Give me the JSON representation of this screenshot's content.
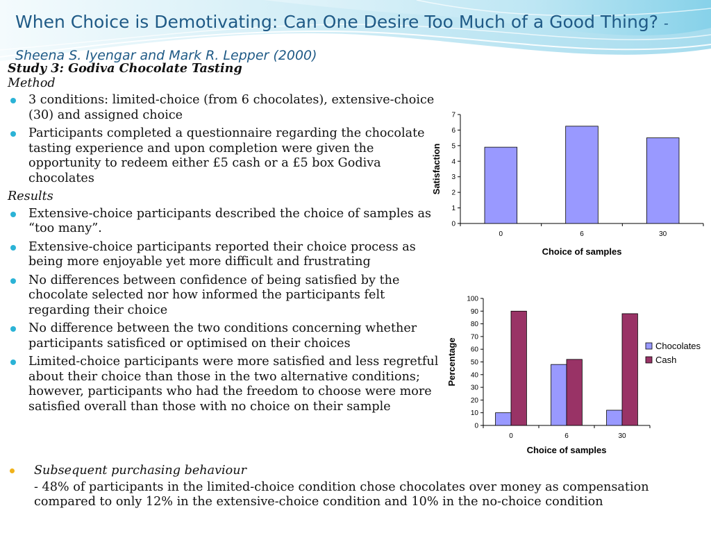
{
  "title": {
    "main": "When Choice is Demotivating: Can One Desire Too Much of a Good Thing?",
    "author": "-Sheena S. Iyengar and Mark R. Lepper (2000)"
  },
  "study_heading": "Study 3: Godiva Chocolate Tasting",
  "method": {
    "heading": "Method",
    "bullets": [
      "3 conditions: limited-choice (from 6 chocolates), extensive-choice (30) and assigned choice",
      "Participants completed a questionnaire regarding the chocolate tasting experience and upon completion were given the opportunity to redeem either £5 cash or a £5 box Godiva chocolates"
    ]
  },
  "results": {
    "heading": "Results",
    "bullets": [
      "Extensive-choice participants described the choice of samples as “too many”.",
      "Extensive-choice participants reported their choice process as being more enjoyable yet more difficult and frustrating",
      "No differences between confidence of being satisfied by the chocolate selected nor how informed the participants felt regarding their choice",
      "No difference between the two conditions concerning whether participants satisficed or optimised on their choices",
      "Limited-choice participants were more satisfied and less regretful about their choice than those in the two alternative conditions; however, participants who had the freedom to choose were more satisfied overall than those with no choice on their sample"
    ]
  },
  "purchasing": {
    "heading": "Subsequent purchasing behaviour",
    "text": "- 48% of participants in the limited-choice condition chose chocolates over money as compensation compared to only 12% in the extensive-choice condition and 10% in the no-choice condition"
  },
  "colors": {
    "title": "#1f5a86",
    "bullet": "#2bb3d6",
    "accent_bullet": "#f0b21b",
    "chocolates_bar": "#9999ff",
    "cash_bar": "#993366"
  },
  "chart_data": [
    {
      "type": "bar",
      "categories": [
        "0",
        "6",
        "30"
      ],
      "series": [
        {
          "values": [
            4.9,
            6.25,
            5.5
          ],
          "color": "#9999ff"
        }
      ],
      "xlabel": "Choice of samples",
      "ylabel": "Satisfaction",
      "ylim": [
        0,
        7
      ],
      "yticks": [
        "0",
        "1",
        "2",
        "3",
        "4",
        "5",
        "6",
        "7"
      ],
      "grid": false,
      "legend": "none"
    },
    {
      "type": "bar",
      "categories": [
        "0",
        "6",
        "30"
      ],
      "series": [
        {
          "name": "Chocolates",
          "values": [
            10,
            48,
            12
          ],
          "color": "#9999ff"
        },
        {
          "name": "Cash",
          "values": [
            90,
            52,
            88
          ],
          "color": "#993366"
        }
      ],
      "xlabel": "Choice of samples",
      "ylabel": "Percentage",
      "ylim": [
        0,
        100
      ],
      "yticks": [
        "0",
        "10",
        "20",
        "30",
        "40",
        "50",
        "60",
        "70",
        "80",
        "90",
        "100"
      ],
      "grid": false,
      "legend": "right"
    }
  ]
}
